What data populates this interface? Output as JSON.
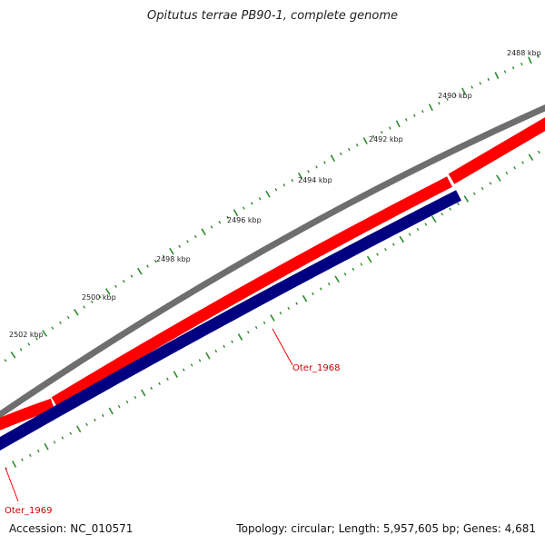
{
  "header": {
    "title": "Opitutus terrae PB90-1, complete genome"
  },
  "footer": {
    "accession": "Accession: NC_010571",
    "summary": "Topology: circular; Length: 5,957,605 bp; Genes: 4,681"
  },
  "ticks": {
    "labels": [
      "2488 kbp",
      "2490 kbp",
      "2492 kbp",
      "2494 kbp",
      "2496 kbp",
      "2498 kbp",
      "2500 kbp",
      "2502 kbp"
    ],
    "color": "#2e8b2e"
  },
  "genes": [
    {
      "name": "Oter_1968",
      "color": "#cc0000"
    },
    {
      "name": "Oter_1969",
      "color": "#cc0000"
    }
  ],
  "colors": {
    "backbone": "#808080",
    "forward_feature": "#ff0000",
    "reverse_feature": "#000080",
    "label": "#cc0000"
  }
}
